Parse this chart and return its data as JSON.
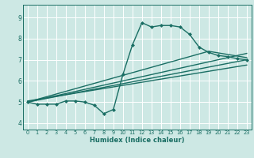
{
  "title": "",
  "xlabel": "Humidex (Indice chaleur)",
  "bg_color": "#cde8e4",
  "line_color": "#1a6e64",
  "grid_color": "#ffffff",
  "xlim": [
    -0.5,
    23.5
  ],
  "ylim": [
    3.7,
    9.6
  ],
  "xticks": [
    0,
    1,
    2,
    3,
    4,
    5,
    6,
    7,
    8,
    9,
    10,
    11,
    12,
    13,
    14,
    15,
    16,
    17,
    18,
    19,
    20,
    21,
    22,
    23
  ],
  "yticks": [
    4,
    5,
    6,
    7,
    8,
    9
  ],
  "series": [
    {
      "x": [
        0,
        1,
        2,
        3,
        4,
        5,
        6,
        7,
        8,
        9,
        10,
        11,
        12,
        13,
        14,
        15,
        16,
        17,
        18,
        19,
        20,
        21,
        22,
        23
      ],
      "y": [
        5.0,
        4.9,
        4.9,
        4.9,
        5.05,
        5.05,
        5.0,
        4.85,
        4.45,
        4.65,
        6.3,
        7.7,
        8.75,
        8.55,
        8.62,
        8.62,
        8.55,
        8.2,
        7.6,
        7.35,
        7.2,
        7.15,
        7.05,
        7.0
      ],
      "marker": "D",
      "markersize": 2.0,
      "linewidth": 1.0
    },
    {
      "x": [
        0,
        23
      ],
      "y": [
        5.0,
        7.0
      ],
      "marker": null,
      "linewidth": 1.0
    },
    {
      "x": [
        0,
        23
      ],
      "y": [
        5.0,
        7.3
      ],
      "marker": null,
      "linewidth": 1.0
    },
    {
      "x": [
        0,
        19,
        23
      ],
      "y": [
        5.0,
        7.4,
        7.1
      ],
      "marker": null,
      "linewidth": 1.0
    },
    {
      "x": [
        0,
        23
      ],
      "y": [
        5.05,
        6.75
      ],
      "marker": null,
      "linewidth": 1.0
    }
  ]
}
